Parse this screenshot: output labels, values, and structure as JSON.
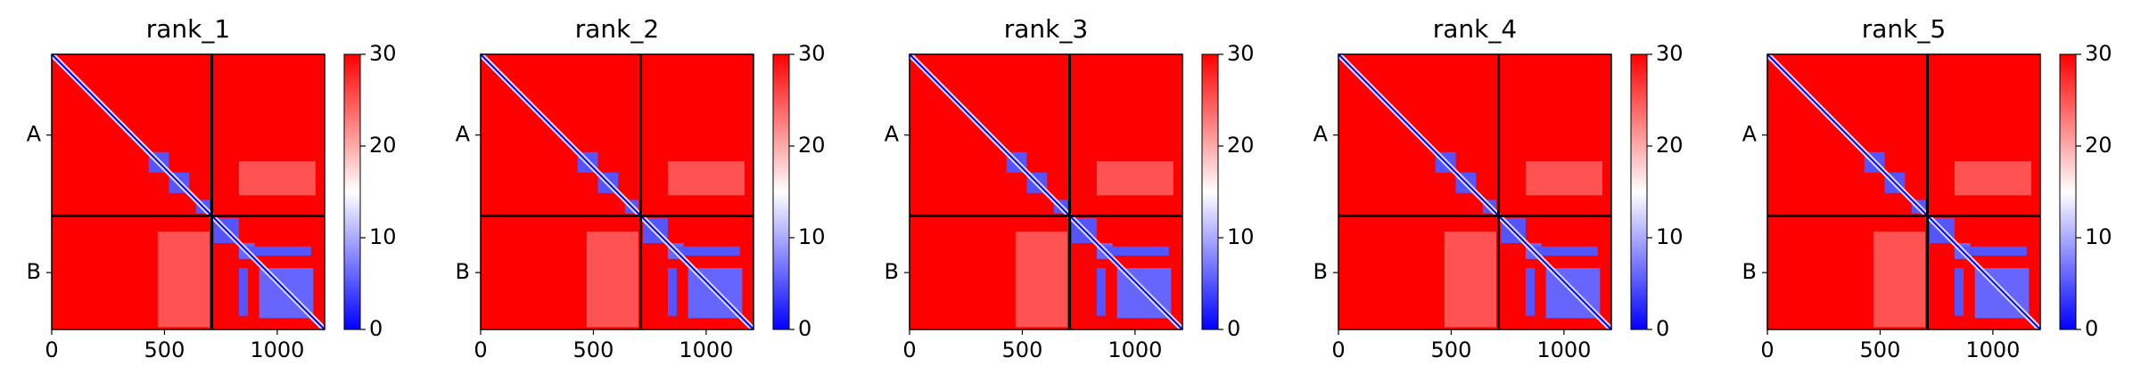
{
  "chart_data": [
    {
      "type": "heatmap",
      "title": "rank_1",
      "xlim": [
        0,
        1210
      ],
      "ylim": [
        1210,
        0
      ],
      "xticks": [
        0,
        500,
        1000
      ],
      "yticks": [
        {
          "value": 355,
          "label": "A"
        },
        {
          "value": 960,
          "label": "B"
        }
      ],
      "chain_breaks": [
        710
      ],
      "diagonal_value": 0,
      "background_value": 30,
      "blocks": [
        {
          "x": [
            430,
            520
          ],
          "y": [
            430,
            520
          ],
          "value": 5
        },
        {
          "x": [
            520,
            610
          ],
          "y": [
            520,
            610
          ],
          "value": 5
        },
        {
          "x": [
            640,
            700
          ],
          "y": [
            640,
            700
          ],
          "value": 5
        },
        {
          "x": [
            720,
            830
          ],
          "y": [
            720,
            830
          ],
          "value": 5
        },
        {
          "x": [
            830,
            900
          ],
          "y": [
            830,
            900
          ],
          "value": 6
        },
        {
          "x": [
            860,
            1150
          ],
          "y": [
            845,
            885
          ],
          "value": 5
        },
        {
          "x": [
            830,
            870
          ],
          "y": [
            940,
            1150
          ],
          "value": 5
        },
        {
          "x": [
            920,
            1160
          ],
          "y": [
            940,
            1160
          ],
          "value": 6
        },
        {
          "x": [
            470,
            700
          ],
          "y": [
            780,
            1200
          ],
          "value": 24
        },
        {
          "x": [
            830,
            1170
          ],
          "y": [
            470,
            620
          ],
          "value": 24
        }
      ],
      "colorbar": {
        "lim": [
          0,
          30
        ],
        "ticks": [
          0,
          10,
          20,
          30
        ],
        "colors": [
          "#0000ff",
          "#ffffff",
          "#ff0000"
        ]
      }
    },
    {
      "type": "heatmap",
      "title": "rank_2",
      "xlim": [
        0,
        1210
      ],
      "ylim": [
        1210,
        0
      ],
      "xticks": [
        0,
        500,
        1000
      ],
      "yticks": [
        {
          "value": 355,
          "label": "A"
        },
        {
          "value": 960,
          "label": "B"
        }
      ],
      "chain_breaks": [
        710
      ],
      "diagonal_value": 0,
      "background_value": 30,
      "blocks": [
        {
          "x": [
            430,
            520
          ],
          "y": [
            430,
            520
          ],
          "value": 5
        },
        {
          "x": [
            520,
            610
          ],
          "y": [
            520,
            610
          ],
          "value": 5
        },
        {
          "x": [
            640,
            700
          ],
          "y": [
            640,
            700
          ],
          "value": 5
        },
        {
          "x": [
            720,
            830
          ],
          "y": [
            720,
            830
          ],
          "value": 5
        },
        {
          "x": [
            830,
            900
          ],
          "y": [
            830,
            900
          ],
          "value": 6
        },
        {
          "x": [
            860,
            1150
          ],
          "y": [
            845,
            885
          ],
          "value": 5
        },
        {
          "x": [
            830,
            870
          ],
          "y": [
            940,
            1150
          ],
          "value": 5
        },
        {
          "x": [
            920,
            1160
          ],
          "y": [
            940,
            1160
          ],
          "value": 6
        },
        {
          "x": [
            470,
            700
          ],
          "y": [
            780,
            1200
          ],
          "value": 24
        },
        {
          "x": [
            830,
            1170
          ],
          "y": [
            470,
            620
          ],
          "value": 24
        }
      ],
      "colorbar": {
        "lim": [
          0,
          30
        ],
        "ticks": [
          0,
          10,
          20,
          30
        ],
        "colors": [
          "#0000ff",
          "#ffffff",
          "#ff0000"
        ]
      }
    },
    {
      "type": "heatmap",
      "title": "rank_3",
      "xlim": [
        0,
        1210
      ],
      "ylim": [
        1210,
        0
      ],
      "xticks": [
        0,
        500,
        1000
      ],
      "yticks": [
        {
          "value": 355,
          "label": "A"
        },
        {
          "value": 960,
          "label": "B"
        }
      ],
      "chain_breaks": [
        710
      ],
      "diagonal_value": 0,
      "background_value": 30,
      "blocks": [
        {
          "x": [
            430,
            520
          ],
          "y": [
            430,
            520
          ],
          "value": 5
        },
        {
          "x": [
            520,
            610
          ],
          "y": [
            520,
            610
          ],
          "value": 5
        },
        {
          "x": [
            640,
            700
          ],
          "y": [
            640,
            700
          ],
          "value": 5
        },
        {
          "x": [
            720,
            830
          ],
          "y": [
            720,
            830
          ],
          "value": 5
        },
        {
          "x": [
            830,
            900
          ],
          "y": [
            830,
            900
          ],
          "value": 6
        },
        {
          "x": [
            860,
            1150
          ],
          "y": [
            845,
            885
          ],
          "value": 5
        },
        {
          "x": [
            830,
            870
          ],
          "y": [
            940,
            1150
          ],
          "value": 5
        },
        {
          "x": [
            920,
            1160
          ],
          "y": [
            940,
            1160
          ],
          "value": 6
        },
        {
          "x": [
            470,
            700
          ],
          "y": [
            780,
            1200
          ],
          "value": 24
        },
        {
          "x": [
            830,
            1170
          ],
          "y": [
            470,
            620
          ],
          "value": 24
        }
      ],
      "colorbar": {
        "lim": [
          0,
          30
        ],
        "ticks": [
          0,
          10,
          20,
          30
        ],
        "colors": [
          "#0000ff",
          "#ffffff",
          "#ff0000"
        ]
      }
    },
    {
      "type": "heatmap",
      "title": "rank_4",
      "xlim": [
        0,
        1210
      ],
      "ylim": [
        1210,
        0
      ],
      "xticks": [
        0,
        500,
        1000
      ],
      "yticks": [
        {
          "value": 355,
          "label": "A"
        },
        {
          "value": 960,
          "label": "B"
        }
      ],
      "chain_breaks": [
        710
      ],
      "diagonal_value": 0,
      "background_value": 30,
      "blocks": [
        {
          "x": [
            430,
            520
          ],
          "y": [
            430,
            520
          ],
          "value": 5
        },
        {
          "x": [
            520,
            610
          ],
          "y": [
            520,
            610
          ],
          "value": 5
        },
        {
          "x": [
            640,
            700
          ],
          "y": [
            640,
            700
          ],
          "value": 5
        },
        {
          "x": [
            720,
            830
          ],
          "y": [
            720,
            830
          ],
          "value": 5
        },
        {
          "x": [
            830,
            900
          ],
          "y": [
            830,
            900
          ],
          "value": 6
        },
        {
          "x": [
            860,
            1150
          ],
          "y": [
            845,
            885
          ],
          "value": 5
        },
        {
          "x": [
            830,
            870
          ],
          "y": [
            940,
            1150
          ],
          "value": 5
        },
        {
          "x": [
            920,
            1160
          ],
          "y": [
            940,
            1160
          ],
          "value": 6
        },
        {
          "x": [
            470,
            700
          ],
          "y": [
            780,
            1200
          ],
          "value": 24
        },
        {
          "x": [
            830,
            1170
          ],
          "y": [
            470,
            620
          ],
          "value": 24
        }
      ],
      "colorbar": {
        "lim": [
          0,
          30
        ],
        "ticks": [
          0,
          10,
          20,
          30
        ],
        "colors": [
          "#0000ff",
          "#ffffff",
          "#ff0000"
        ]
      }
    },
    {
      "type": "heatmap",
      "title": "rank_5",
      "xlim": [
        0,
        1210
      ],
      "ylim": [
        1210,
        0
      ],
      "xticks": [
        0,
        500,
        1000
      ],
      "yticks": [
        {
          "value": 355,
          "label": "A"
        },
        {
          "value": 960,
          "label": "B"
        }
      ],
      "chain_breaks": [
        710
      ],
      "diagonal_value": 0,
      "background_value": 30,
      "blocks": [
        {
          "x": [
            430,
            520
          ],
          "y": [
            430,
            520
          ],
          "value": 5
        },
        {
          "x": [
            520,
            610
          ],
          "y": [
            520,
            610
          ],
          "value": 5
        },
        {
          "x": [
            640,
            700
          ],
          "y": [
            640,
            700
          ],
          "value": 5
        },
        {
          "x": [
            720,
            830
          ],
          "y": [
            720,
            830
          ],
          "value": 5
        },
        {
          "x": [
            830,
            900
          ],
          "y": [
            830,
            900
          ],
          "value": 6
        },
        {
          "x": [
            860,
            1150
          ],
          "y": [
            845,
            885
          ],
          "value": 5
        },
        {
          "x": [
            830,
            870
          ],
          "y": [
            940,
            1150
          ],
          "value": 5
        },
        {
          "x": [
            920,
            1160
          ],
          "y": [
            940,
            1160
          ],
          "value": 6
        },
        {
          "x": [
            470,
            700
          ],
          "y": [
            780,
            1200
          ],
          "value": 24
        },
        {
          "x": [
            830,
            1170
          ],
          "y": [
            470,
            620
          ],
          "value": 24
        }
      ],
      "colorbar": {
        "lim": [
          0,
          30
        ],
        "ticks": [
          0,
          10,
          20,
          30
        ],
        "colors": [
          "#0000ff",
          "#ffffff",
          "#ff0000"
        ]
      }
    }
  ]
}
